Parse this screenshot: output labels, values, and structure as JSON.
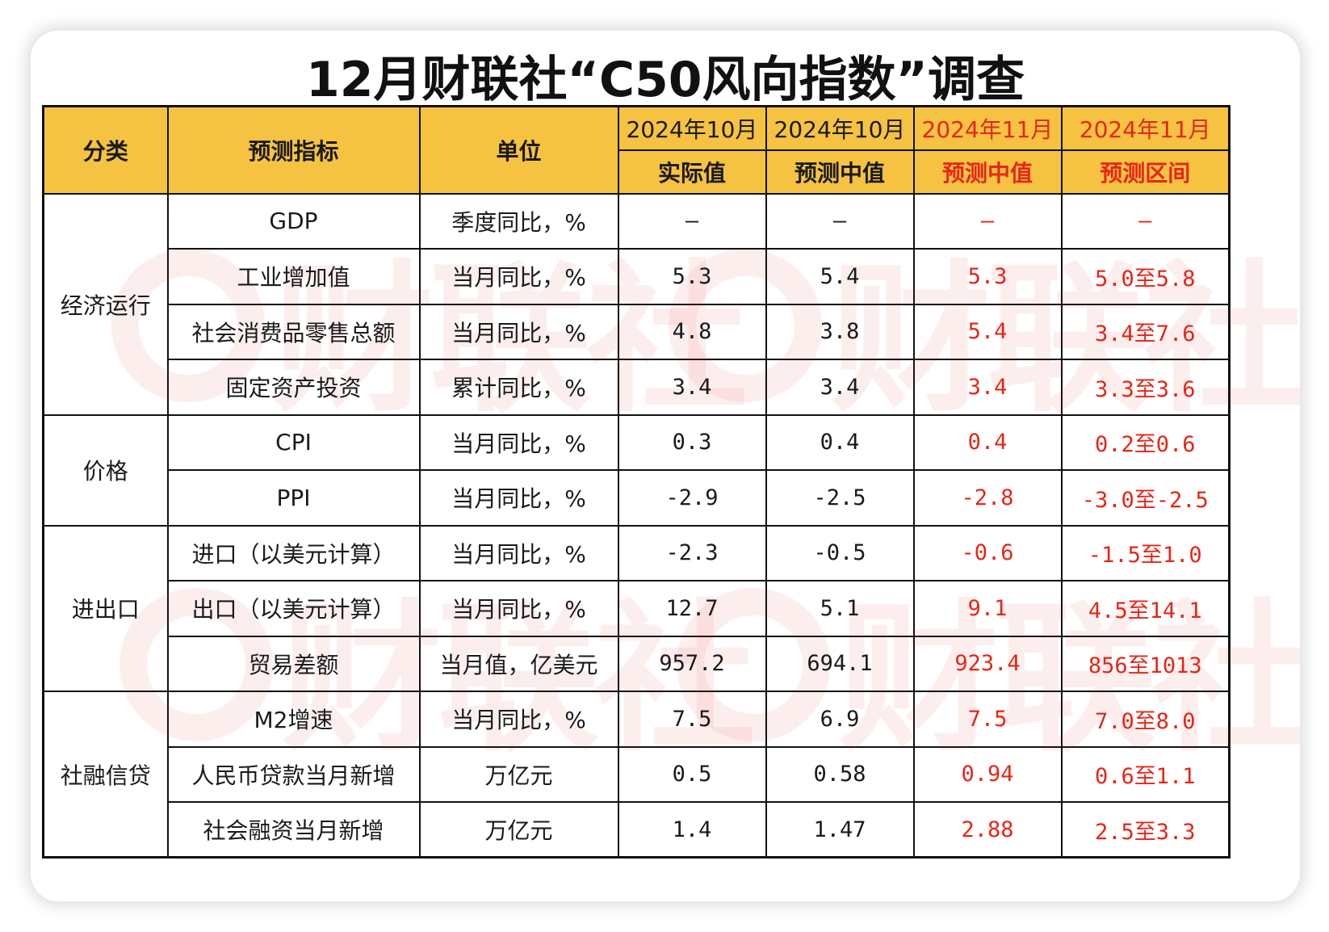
{
  "title": "12月财联社“C50风向指数”调查",
  "watermark": "财联社",
  "colors": {
    "header_bg": "#f5c242",
    "forecast_text": "#e52618",
    "border": "#111111"
  },
  "chart_data": {
    "type": "table",
    "title": "12月财联社“C50风向指数”调查",
    "header": {
      "category": "分类",
      "indicator": "预测指标",
      "unit": "单位",
      "columns": [
        {
          "period": "2024年10月",
          "label": "实际值"
        },
        {
          "period": "2024年10月",
          "label": "预测中值"
        },
        {
          "period": "2024年11月",
          "label": "预测中值"
        },
        {
          "period": "2024年11月",
          "label": "预测区间"
        }
      ]
    },
    "groups": [
      {
        "name": "经济运行",
        "rows": [
          {
            "indicator": "GDP",
            "unit": "季度同比，%",
            "values": [
              "—",
              "—",
              "—",
              "—"
            ]
          },
          {
            "indicator": "工业增加值",
            "unit": "当月同比，%",
            "values": [
              "5.3",
              "5.4",
              "5.3",
              "5.0至5.8"
            ]
          },
          {
            "indicator": "社会消费品零售总额",
            "unit": "当月同比，%",
            "values": [
              "4.8",
              "3.8",
              "5.4",
              "3.4至7.6"
            ]
          },
          {
            "indicator": "固定资产投资",
            "unit": "累计同比，%",
            "values": [
              "3.4",
              "3.4",
              "3.4",
              "3.3至3.6"
            ]
          }
        ]
      },
      {
        "name": "价格",
        "rows": [
          {
            "indicator": "CPI",
            "unit": "当月同比，%",
            "values": [
              "0.3",
              "0.4",
              "0.4",
              "0.2至0.6"
            ]
          },
          {
            "indicator": "PPI",
            "unit": "当月同比，%",
            "values": [
              "-2.9",
              "-2.5",
              "-2.8",
              "-3.0至-2.5"
            ]
          }
        ]
      },
      {
        "name": "进出口",
        "rows": [
          {
            "indicator": "进口（以美元计算）",
            "unit": "当月同比，%",
            "values": [
              "-2.3",
              "-0.5",
              "-0.6",
              "-1.5至1.0"
            ]
          },
          {
            "indicator": "出口（以美元计算）",
            "unit": "当月同比，%",
            "values": [
              "12.7",
              "5.1",
              "9.1",
              "4.5至14.1"
            ]
          },
          {
            "indicator": "贸易差额",
            "unit": "当月值，亿美元",
            "values": [
              "957.2",
              "694.1",
              "923.4",
              "856至1013"
            ]
          }
        ]
      },
      {
        "name": "社融信贷",
        "rows": [
          {
            "indicator": "M2增速",
            "unit": "当月同比，%",
            "values": [
              "7.5",
              "6.9",
              "7.5",
              "7.0至8.0"
            ]
          },
          {
            "indicator": "人民币贷款当月新增",
            "unit": "万亿元",
            "values": [
              "0.5",
              "0.58",
              "0.94",
              "0.6至1.1"
            ]
          },
          {
            "indicator": "社会融资当月新增",
            "unit": "万亿元",
            "values": [
              "1.4",
              "1.47",
              "2.88",
              "2.5至3.3"
            ]
          }
        ]
      }
    ]
  }
}
